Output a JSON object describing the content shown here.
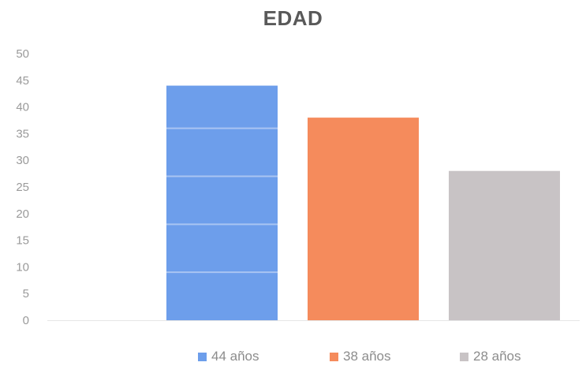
{
  "chart_data": {
    "type": "bar",
    "title": "EDAD",
    "categories": [
      "44 años",
      "38 años",
      "28 años"
    ],
    "values": [
      44,
      38,
      28
    ],
    "colors": [
      "#6d9eeb",
      "#f58b5c",
      "#c8c3c5"
    ],
    "xlabel": "",
    "ylabel": "",
    "ylim": [
      0,
      50
    ],
    "yticks": [
      0,
      5,
      10,
      15,
      20,
      25,
      30,
      35,
      40,
      45,
      50
    ],
    "grid": false,
    "legend": {
      "placement": "bottom",
      "entries": [
        "44 años",
        "38 años",
        "28 años"
      ]
    }
  }
}
